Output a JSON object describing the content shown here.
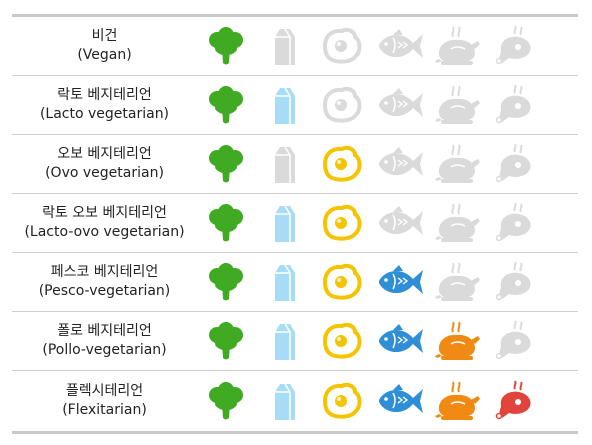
{
  "rows": [
    {
      "name_ko": "비건",
      "name_en": "(Vegan)",
      "icons": [
        "broccoli",
        "milk-carton",
        "egg",
        "fish",
        "chicken",
        "meat"
      ],
      "active": [
        true,
        false,
        false,
        false,
        false,
        false
      ]
    },
    {
      "name_ko": "락토 베지테리언",
      "name_en": "(Lacto vegetarian)",
      "icons": [
        "broccoli",
        "milk-carton",
        "egg",
        "fish",
        "chicken",
        "meat"
      ],
      "active": [
        true,
        true,
        false,
        false,
        false,
        false
      ]
    },
    {
      "name_ko": "오보 베지테리언",
      "name_en": "(Ovo vegetarian)",
      "icons": [
        "broccoli",
        "milk-carton",
        "egg",
        "fish",
        "chicken",
        "meat"
      ],
      "active": [
        true,
        false,
        true,
        false,
        false,
        false
      ]
    },
    {
      "name_ko": "락토 오보 베지테리언",
      "name_en": "(Lacto-ovo vegetarian)",
      "icons": [
        "broccoli",
        "milk-carton",
        "egg",
        "fish",
        "chicken",
        "meat"
      ],
      "active": [
        true,
        true,
        true,
        false,
        false,
        false
      ]
    },
    {
      "name_ko": "페스코 베지테리언",
      "name_en": "(Pesco-vegetarian)",
      "icons": [
        "broccoli",
        "milk-carton",
        "egg",
        "fish",
        "chicken",
        "meat"
      ],
      "active": [
        true,
        true,
        true,
        true,
        false,
        false
      ]
    },
    {
      "name_ko": "폴로 베지테리언",
      "name_en": "(Pollo-vegetarian)",
      "icons": [
        "broccoli",
        "milk-carton",
        "egg",
        "fish",
        "chicken",
        "meat"
      ],
      "active": [
        true,
        true,
        true,
        true,
        true,
        false
      ]
    },
    {
      "name_ko": "플렉시테리언",
      "name_en": "(Flexitarian)",
      "icons": [
        "broccoli",
        "milk-carton",
        "egg",
        "fish",
        "chicken",
        "meat"
      ],
      "active": [
        true,
        true,
        true,
        true,
        true,
        true
      ]
    }
  ],
  "colors": {
    "inactive": "#dadada",
    "broccoli": "#3faa22",
    "milk": "#a6dcf5",
    "egg_ring": "#f5c400",
    "egg_yolk": "#f5c400",
    "fish": "#2f8fd6",
    "chicken": "#f08a12",
    "meat": "#e0443a",
    "border": "#c9c9c9"
  }
}
